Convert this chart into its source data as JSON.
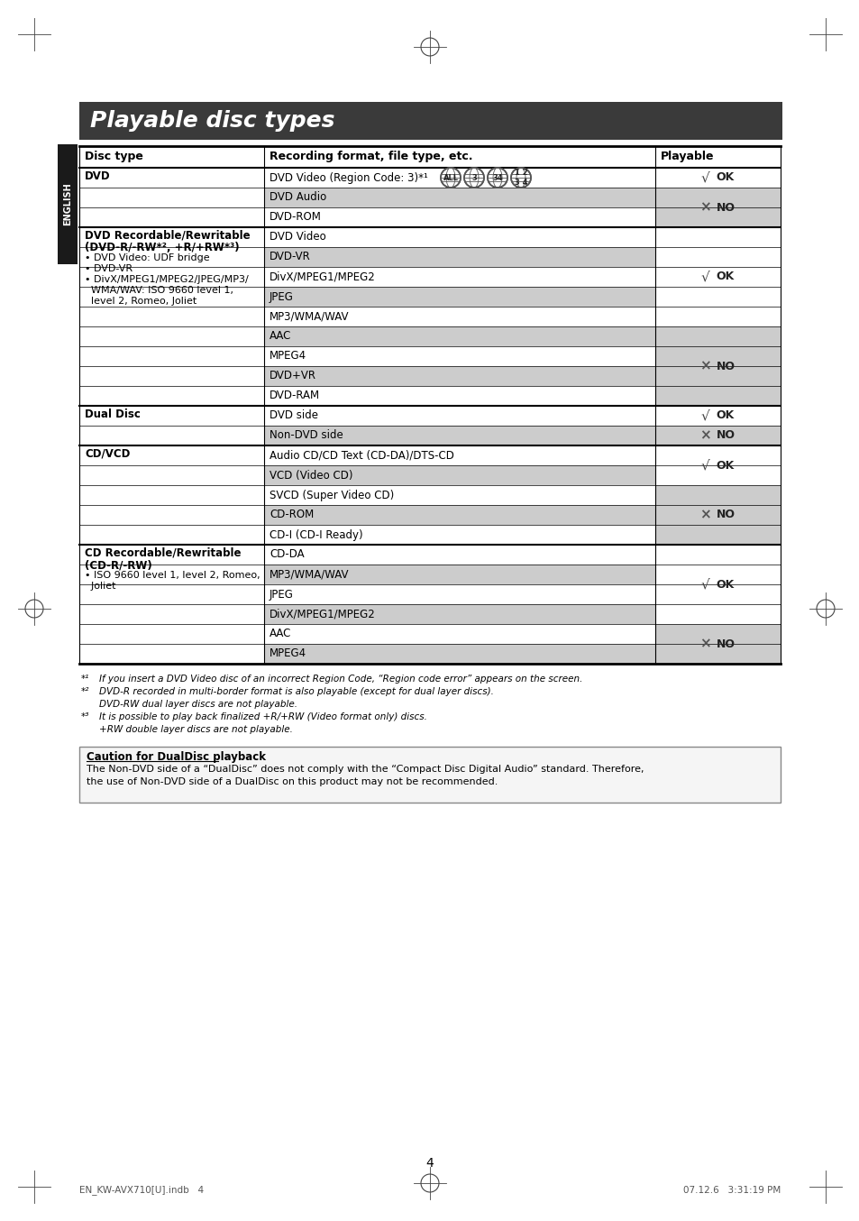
{
  "title": "Playable disc types",
  "title_bg": "#3a3a3a",
  "title_color": "#ffffff",
  "page_bg": "#ffffff",
  "col_headers": [
    "Disc type",
    "Recording format, file type, etc.",
    "Playable"
  ],
  "english_tab_text": "ENGLISH",
  "rows": [
    {
      "format": "DVD Video (Region Code: 3)*¹",
      "playable": "OK",
      "bg_format": "#ffffff",
      "bg_playable": "#ffffff",
      "has_globe": true
    },
    {
      "format": "DVD Audio",
      "playable": "NO",
      "bg_format": "#cccccc",
      "bg_playable": "#cccccc"
    },
    {
      "format": "DVD-ROM",
      "playable": "NO",
      "bg_format": "#ffffff",
      "bg_playable": "#cccccc"
    },
    {
      "format": "DVD Video",
      "playable": "OK",
      "bg_format": "#ffffff",
      "bg_playable": "#ffffff"
    },
    {
      "format": "DVD-VR",
      "playable": "OK",
      "bg_format": "#cccccc",
      "bg_playable": "#ffffff"
    },
    {
      "format": "DivX/MPEG1/MPEG2",
      "playable": "OK",
      "bg_format": "#ffffff",
      "bg_playable": "#ffffff"
    },
    {
      "format": "JPEG",
      "playable": "OK",
      "bg_format": "#cccccc",
      "bg_playable": "#ffffff"
    },
    {
      "format": "MP3/WMA/WAV",
      "playable": "OK",
      "bg_format": "#ffffff",
      "bg_playable": "#ffffff"
    },
    {
      "format": "AAC",
      "playable": "NO",
      "bg_format": "#cccccc",
      "bg_playable": "#cccccc"
    },
    {
      "format": "MPEG4",
      "playable": "NO",
      "bg_format": "#ffffff",
      "bg_playable": "#cccccc"
    },
    {
      "format": "DVD+VR",
      "playable": "NO",
      "bg_format": "#cccccc",
      "bg_playable": "#cccccc"
    },
    {
      "format": "DVD-RAM",
      "playable": "NO",
      "bg_format": "#ffffff",
      "bg_playable": "#cccccc"
    },
    {
      "format": "DVD side",
      "playable": "OK",
      "bg_format": "#ffffff",
      "bg_playable": "#ffffff"
    },
    {
      "format": "Non-DVD side",
      "playable": "NO",
      "bg_format": "#cccccc",
      "bg_playable": "#cccccc"
    },
    {
      "format": "Audio CD/CD Text (CD-DA)/DTS-CD",
      "playable": "OK",
      "bg_format": "#ffffff",
      "bg_playable": "#ffffff"
    },
    {
      "format": "VCD (Video CD)",
      "playable": "OK",
      "bg_format": "#cccccc",
      "bg_playable": "#ffffff"
    },
    {
      "format": "SVCD (Super Video CD)",
      "playable": "NO",
      "bg_format": "#ffffff",
      "bg_playable": "#cccccc"
    },
    {
      "format": "CD-ROM",
      "playable": "NO",
      "bg_format": "#cccccc",
      "bg_playable": "#cccccc"
    },
    {
      "format": "CD-I (CD-I Ready)",
      "playable": "NO",
      "bg_format": "#ffffff",
      "bg_playable": "#cccccc"
    },
    {
      "format": "CD-DA",
      "playable": "OK",
      "bg_format": "#ffffff",
      "bg_playable": "#ffffff"
    },
    {
      "format": "MP3/WMA/WAV",
      "playable": "OK",
      "bg_format": "#cccccc",
      "bg_playable": "#ffffff"
    },
    {
      "format": "JPEG",
      "playable": "OK",
      "bg_format": "#ffffff",
      "bg_playable": "#ffffff"
    },
    {
      "format": "DivX/MPEG1/MPEG2",
      "playable": "OK",
      "bg_format": "#cccccc",
      "bg_playable": "#ffffff"
    },
    {
      "format": "AAC",
      "playable": "NO",
      "bg_format": "#ffffff",
      "bg_playable": "#cccccc"
    },
    {
      "format": "MPEG4",
      "playable": "NO",
      "bg_format": "#cccccc",
      "bg_playable": "#cccccc"
    }
  ],
  "playable_spans": [
    [
      0,
      0,
      "OK"
    ],
    [
      1,
      2,
      "NO"
    ],
    [
      3,
      7,
      "OK"
    ],
    [
      8,
      11,
      "NO"
    ],
    [
      12,
      12,
      "OK"
    ],
    [
      13,
      13,
      "NO"
    ],
    [
      14,
      15,
      "OK"
    ],
    [
      16,
      18,
      "NO"
    ],
    [
      19,
      22,
      "OK"
    ],
    [
      23,
      24,
      "NO"
    ]
  ],
  "section_starts": [
    3,
    12,
    14,
    19
  ],
  "disc_sections": [
    {
      "rows": [
        0,
        1,
        2
      ],
      "line1": "DVD",
      "line2": "",
      "lines_bold": [
        true
      ],
      "extra": []
    },
    {
      "rows": [
        3,
        4,
        5,
        6,
        7,
        8,
        9,
        10,
        11
      ],
      "line1": "DVD Recordable/Rewritable",
      "line2": "(DVD-R/-RW*², +R/+RW*³)",
      "lines_bold": [
        true,
        true
      ],
      "extra": [
        "• DVD Video: UDF bridge",
        "• DVD-VR",
        "• DivX/MPEG1/MPEG2/JPEG/MP3/",
        "  WMA/WAV: ISO 9660 level 1,",
        "  level 2, Romeo, Joliet"
      ]
    },
    {
      "rows": [
        12,
        13
      ],
      "line1": "Dual Disc",
      "line2": "",
      "lines_bold": [
        true
      ],
      "extra": []
    },
    {
      "rows": [
        14,
        15,
        16,
        17,
        18
      ],
      "line1": "CD/VCD",
      "line2": "",
      "lines_bold": [
        true
      ],
      "extra": []
    },
    {
      "rows": [
        19,
        20,
        21,
        22,
        23,
        24
      ],
      "line1": "CD Recordable/Rewritable",
      "line2": "(CD-R/-RW)",
      "lines_bold": [
        true,
        true
      ],
      "extra": [
        "• ISO 9660 level 1, level 2, Romeo,",
        "  Joliet"
      ]
    }
  ],
  "footnotes": [
    [
      "*¹",
      "If you insert a DVD Video disc of an incorrect Region Code, “Region code error” appears on the screen."
    ],
    [
      "*²",
      "DVD-R recorded in multi-border format is also playable (except for dual layer discs)."
    ],
    [
      "",
      "DVD-RW dual layer discs are not playable."
    ],
    [
      "*³",
      "It is possible to play back finalized +R/+RW (Video format only) discs."
    ],
    [
      "",
      "+RW double layer discs are not playable."
    ]
  ],
  "caution_title": "Caution for DualDisc playback",
  "caution_text": "The Non-DVD side of a “DualDisc” does not comply with the “Compact Disc Digital Audio” standard. Therefore,\nthe use of Non-DVD side of a DualDisc on this product may not be recommended.",
  "page_number": "4",
  "bottom_left": "EN_KW-AVX710[U].indb   4",
  "bottom_right": "07.12.6   3:31:19 PM"
}
